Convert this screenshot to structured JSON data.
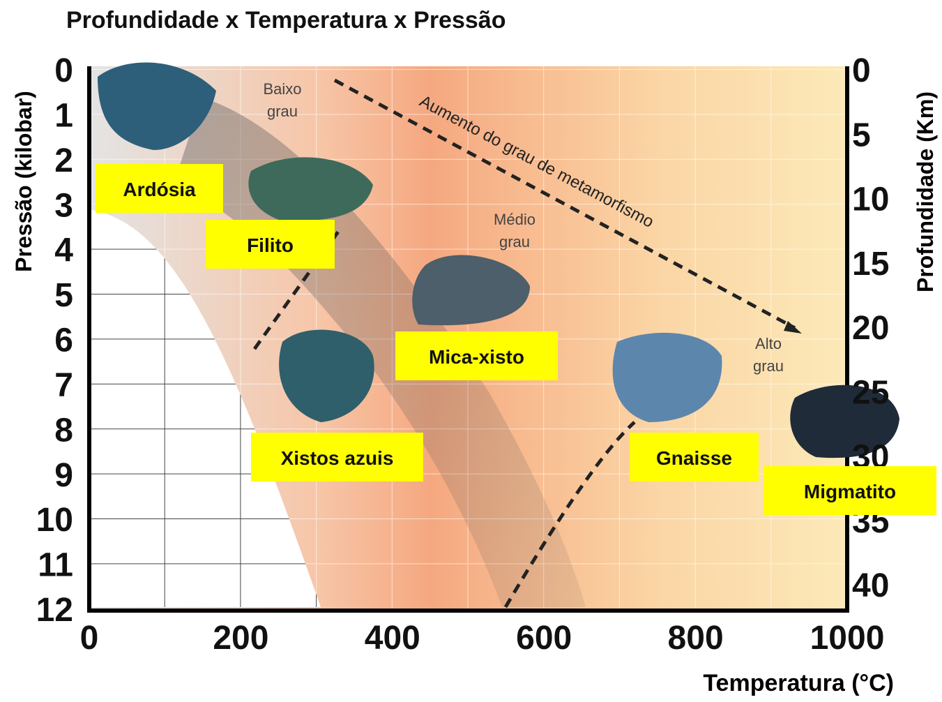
{
  "title": "Profundidade x Temperatura x Pressão",
  "left_axis": {
    "label": "Pressão (kilobar)",
    "ticks": [
      0,
      1,
      2,
      3,
      4,
      5,
      6,
      7,
      8,
      9,
      10,
      11,
      12
    ]
  },
  "right_axis": {
    "label": "Profundidade (Km)",
    "ticks": [
      0,
      5,
      10,
      15,
      20,
      25,
      30,
      35,
      40
    ]
  },
  "bottom_axis": {
    "label": "Temperatura (°C)",
    "ticks": [
      0,
      200,
      400,
      600,
      800,
      1000
    ]
  },
  "zones": [
    {
      "lines": [
        "Baixo",
        "grau"
      ]
    },
    {
      "lines": [
        "Médio",
        "grau"
      ]
    },
    {
      "lines": [
        "Alto",
        "grau"
      ]
    }
  ],
  "arrow_label": "Aumento do grau de metamorfismo",
  "rocks": [
    "Ardósia",
    "Filito",
    "Xistos azuis",
    "Mica-xisto",
    "Gnaisse",
    "Migmatito"
  ]
}
